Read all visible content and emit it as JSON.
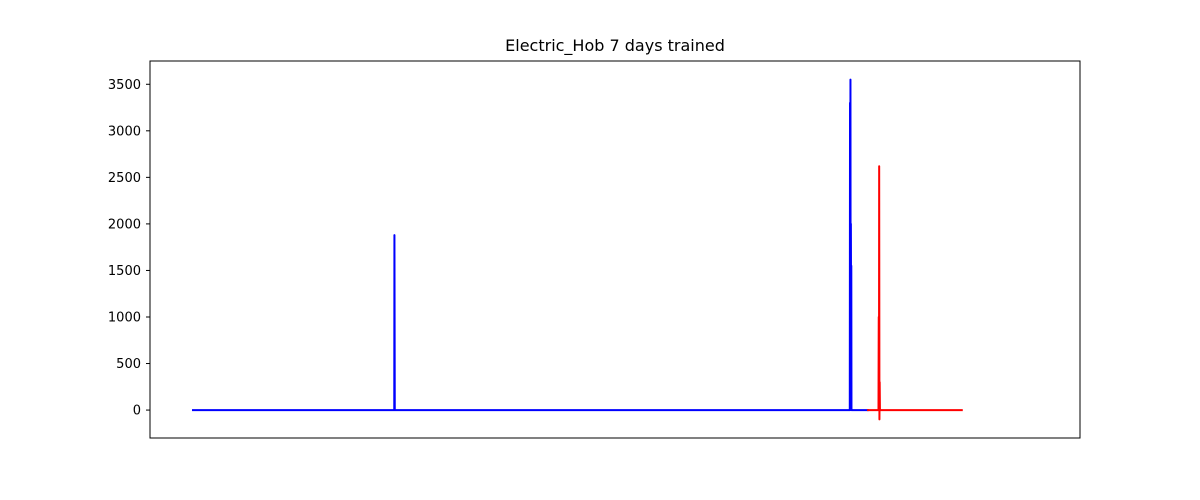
{
  "chart_data": {
    "type": "line",
    "title": "Electric_Hob 7 days trained",
    "xlabel": "",
    "ylabel": "",
    "x_ticks_visible": false,
    "x_range": [
      0,
      1000
    ],
    "ylim": [
      -300,
      3750
    ],
    "y_ticks": [
      0,
      500,
      1000,
      1500,
      2000,
      2500,
      3000,
      3500
    ],
    "grid": false,
    "legend": "none",
    "series": [
      {
        "color": "#0000ff",
        "points": [
          [
            0,
            0
          ],
          [
            238.8,
            0
          ],
          [
            239.0,
            1880
          ],
          [
            239.4,
            0
          ],
          [
            776.6,
            0
          ],
          [
            776.9,
            3300
          ],
          [
            777.1,
            0
          ],
          [
            777.4,
            3550
          ],
          [
            777.6,
            500
          ],
          [
            777.9,
            2000
          ],
          [
            778.1,
            1200
          ],
          [
            778.4,
            1550
          ],
          [
            778.6,
            0
          ],
          [
            799,
            0
          ]
        ]
      },
      {
        "color": "#ff0000",
        "points": [
          [
            797,
            0
          ],
          [
            810.5,
            0
          ],
          [
            810.8,
            1000
          ],
          [
            811.1,
            0
          ],
          [
            811.3,
            2620
          ],
          [
            811.6,
            -100
          ],
          [
            811.9,
            300
          ],
          [
            812.2,
            0
          ],
          [
            910,
            0
          ]
        ]
      }
    ]
  }
}
